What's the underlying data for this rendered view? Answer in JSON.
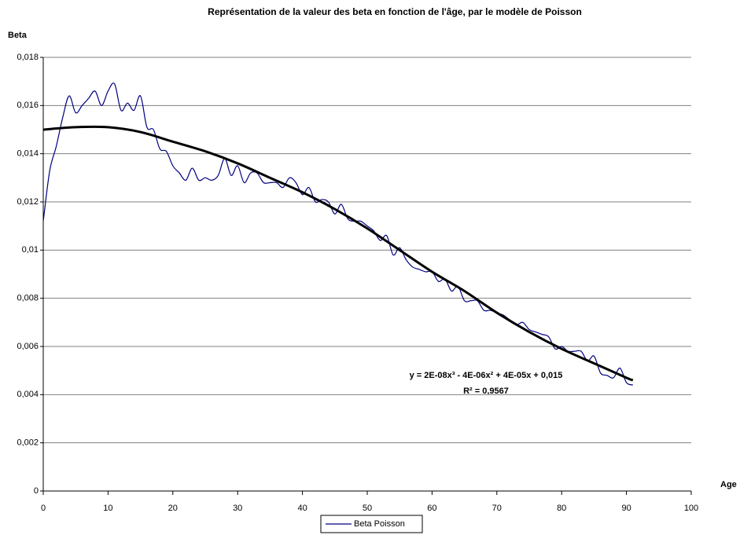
{
  "chart_data": {
    "type": "line",
    "title": "Représentation de la valeur des beta en fonction de l'âge, par le modèle de Poisson",
    "y_label": "Beta",
    "x_label": "Age",
    "xlim": [
      0,
      100
    ],
    "xticks": [
      0,
      10,
      20,
      30,
      40,
      50,
      60,
      70,
      80,
      90,
      100
    ],
    "ylim": [
      0,
      0.018
    ],
    "yticks": [
      0,
      {
        "value": 0.002,
        "label": "0,002"
      },
      {
        "value": 0.004,
        "label": "0,004"
      },
      {
        "value": 0.006,
        "label": "0,006"
      },
      {
        "value": 0.008,
        "label": "0,008"
      },
      {
        "value": 0.01,
        "label": "0,01"
      },
      {
        "value": 0.012,
        "label": "0,012"
      },
      {
        "value": 0.014,
        "label": "0,014"
      },
      {
        "value": 0.016,
        "label": "0,016"
      },
      {
        "value": 0.018,
        "label": "0,018"
      }
    ],
    "grid": true,
    "legend": "bottom",
    "series": [
      {
        "name": "Beta Poisson",
        "color": "#000080",
        "x": [
          0,
          1,
          2,
          3,
          4,
          5,
          6,
          7,
          8,
          9,
          10,
          11,
          12,
          13,
          14,
          15,
          16,
          17,
          18,
          19,
          20,
          21,
          22,
          23,
          24,
          25,
          26,
          27,
          28,
          29,
          30,
          31,
          32,
          33,
          34,
          35,
          36,
          37,
          38,
          39,
          40,
          41,
          42,
          43,
          44,
          45,
          46,
          47,
          48,
          49,
          50,
          51,
          52,
          53,
          54,
          55,
          56,
          57,
          58,
          59,
          60,
          61,
          62,
          63,
          64,
          65,
          66,
          67,
          68,
          69,
          70,
          71,
          72,
          73,
          74,
          75,
          76,
          77,
          78,
          79,
          80,
          81,
          82,
          83,
          84,
          85,
          86,
          87,
          88,
          89,
          90,
          91
        ],
        "values": [
          0.0112,
          0.0133,
          0.0143,
          0.0155,
          0.0164,
          0.0157,
          0.016,
          0.0163,
          0.0166,
          0.016,
          0.0166,
          0.0169,
          0.0158,
          0.0161,
          0.0158,
          0.0164,
          0.0151,
          0.015,
          0.0142,
          0.0141,
          0.0135,
          0.0132,
          0.0129,
          0.0134,
          0.0129,
          0.013,
          0.0129,
          0.0131,
          0.0138,
          0.0131,
          0.0135,
          0.0128,
          0.0132,
          0.0132,
          0.0128,
          0.0128,
          0.0128,
          0.0126,
          0.013,
          0.0128,
          0.0123,
          0.0126,
          0.012,
          0.0121,
          0.012,
          0.0115,
          0.0119,
          0.0113,
          0.0112,
          0.0112,
          0.011,
          0.0108,
          0.0104,
          0.0106,
          0.0098,
          0.0101,
          0.0096,
          0.0093,
          0.0092,
          0.0091,
          0.0091,
          0.0087,
          0.0088,
          0.0083,
          0.0085,
          0.0079,
          0.0079,
          0.0079,
          0.0075,
          0.0075,
          0.0074,
          0.0073,
          0.0071,
          0.0069,
          0.007,
          0.0067,
          0.0066,
          0.0065,
          0.0064,
          0.0059,
          0.006,
          0.0058,
          0.0058,
          0.0058,
          0.0054,
          0.0056,
          0.0049,
          0.0048,
          0.0047,
          0.0051,
          0.0045,
          0.0044
        ]
      },
      {
        "color": "#000000",
        "x": [
          0,
          5,
          10,
          15,
          20,
          25,
          30,
          35,
          40,
          45,
          50,
          55,
          60,
          65,
          70,
          75,
          80,
          85,
          90,
          91
        ],
        "values": [
          0.015,
          0.0151,
          0.0151,
          0.0149,
          0.0145,
          0.0141,
          0.0136,
          0.013,
          0.0124,
          0.0117,
          0.0109,
          0.01,
          0.0091,
          0.0083,
          0.0074,
          0.0066,
          0.0059,
          0.0053,
          0.0047,
          0.0046
        ]
      }
    ],
    "annotations": [
      "y = 2E-08x³ - 4E-06x² + 4E-05x + 0,015",
      "R² = 0,9567"
    ]
  }
}
